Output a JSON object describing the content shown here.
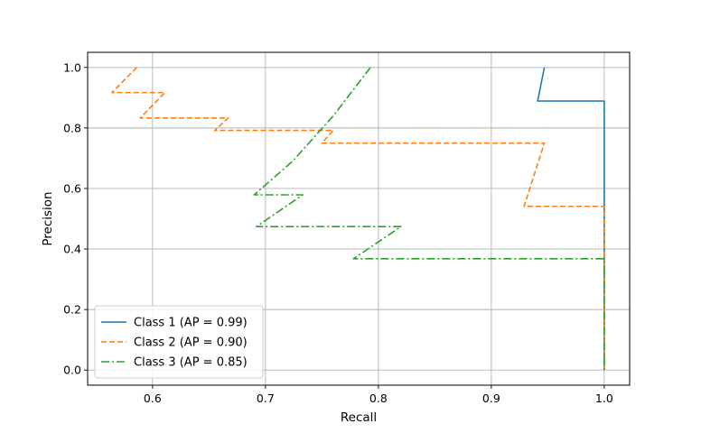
{
  "chart_data": {
    "type": "line",
    "title": "",
    "xlabel": "Recall",
    "ylabel": "Precision",
    "xlim": [
      0.5425,
      1.0225
    ],
    "ylim": [
      -0.05,
      1.05
    ],
    "xticks": [
      0.6,
      0.7,
      0.8,
      0.9,
      1.0
    ],
    "xtick_labels": [
      "0.6",
      "0.7",
      "0.8",
      "0.9",
      "1.0"
    ],
    "yticks": [
      0.0,
      0.2,
      0.4,
      0.6,
      0.8,
      1.0
    ],
    "ytick_labels": [
      "0.0",
      "0.2",
      "0.4",
      "0.6",
      "0.8",
      "1.0"
    ],
    "grid": true,
    "legend_position": "lower-left",
    "series": [
      {
        "name": "Class 1 (AP = 0.99)",
        "color": "#1f77b4",
        "dash": "solid",
        "x": [
          0.947,
          0.941,
          1.0,
          1.0,
          1.0
        ],
        "y": [
          1.0,
          0.889,
          0.889,
          0.5,
          0.0
        ]
      },
      {
        "name": "Class 2 (AP = 0.90)",
        "color": "#ff7f0e",
        "dash": "dashed",
        "x": [
          0.586,
          0.564,
          0.611,
          0.589,
          0.667,
          0.655,
          0.76,
          0.75,
          0.947,
          0.929,
          1.0,
          1.0,
          1.0
        ],
        "y": [
          1.0,
          0.917,
          0.917,
          0.833,
          0.833,
          0.792,
          0.792,
          0.75,
          0.75,
          0.541,
          0.541,
          0.3,
          0.0
        ]
      },
      {
        "name": "Class 3 (AP = 0.85)",
        "color": "#2ca02c",
        "dash": "dashdot",
        "x": [
          0.793,
          0.76,
          0.724,
          0.69,
          0.733,
          0.692,
          0.82,
          0.778,
          1.0,
          1.0,
          1.0
        ],
        "y": [
          1.0,
          0.84,
          0.69,
          0.579,
          0.579,
          0.474,
          0.474,
          0.368,
          0.368,
          0.2,
          0.0
        ]
      }
    ]
  }
}
